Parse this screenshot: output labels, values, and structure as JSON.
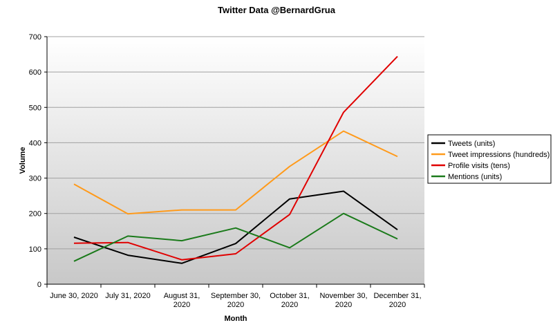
{
  "chart_data": {
    "type": "line",
    "title": "Twitter Data @BernardGrua",
    "xlabel": "Month",
    "ylabel": "Volume",
    "ylim": [
      0,
      700
    ],
    "yticks": [
      0,
      100,
      200,
      300,
      400,
      500,
      600,
      700
    ],
    "grid": true,
    "legend_position": "right",
    "categories": [
      [
        "June 30, 2020"
      ],
      [
        "July 31, 2020"
      ],
      [
        "August 31,",
        "2020"
      ],
      [
        "September 30,",
        "2020"
      ],
      [
        "October 31,",
        "2020"
      ],
      [
        "November 30,",
        "2020"
      ],
      [
        "December 31,",
        "2020"
      ]
    ],
    "series": [
      {
        "name": "Tweets (units)",
        "color": "#000000",
        "values": [
          133,
          82,
          59,
          115,
          241,
          263,
          154
        ]
      },
      {
        "name": "Tweet impressions (hundreds)",
        "color": "#ff9a1a",
        "values": [
          283,
          199,
          210,
          210,
          333,
          433,
          361
        ]
      },
      {
        "name": "Profile visits (tens)",
        "color": "#e00000",
        "values": [
          116,
          118,
          69,
          86,
          197,
          486,
          644
        ]
      },
      {
        "name": "Mentions (units)",
        "color": "#1a7a1a",
        "values": [
          65,
          136,
          123,
          159,
          103,
          200,
          128
        ]
      }
    ]
  }
}
